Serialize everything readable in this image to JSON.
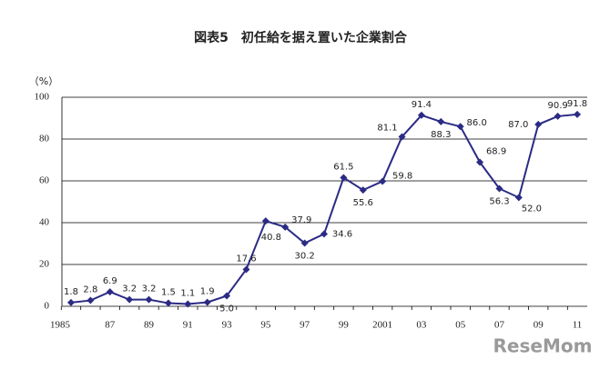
{
  "chart_data": {
    "type": "line",
    "title": "図表5　初任給を据え置いた企業割合",
    "y_label": "（%）",
    "watermark": "ReseMom",
    "categories": [
      "1985",
      null,
      "87",
      null,
      "89",
      null,
      "91",
      null,
      "93",
      null,
      "95",
      null,
      "97",
      null,
      "99",
      null,
      "2001",
      null,
      "03",
      null,
      "05",
      null,
      "07",
      null,
      "09",
      null,
      "11"
    ],
    "series": [
      {
        "color": "#2b2b85",
        "values": [
          1.8,
          2.8,
          6.9,
          3.2,
          3.2,
          1.5,
          1.1,
          1.9,
          5.0,
          17.6,
          40.8,
          37.9,
          30.2,
          34.6,
          61.5,
          55.6,
          59.8,
          81.1,
          91.4,
          88.3,
          86.0,
          68.9,
          56.3,
          52.0,
          87.0,
          90.9,
          91.8
        ],
        "value_labels": [
          "1.8",
          "2.8",
          "6.9",
          "3.2",
          "3.2",
          "1.5",
          "1.1",
          "1.9",
          "5.0",
          "17.6",
          "40.8",
          "37.9",
          "30.2",
          "34.6",
          "61.5",
          "55.6",
          "59.8",
          "81.1",
          "91.4",
          "88.3",
          "86.0",
          "68.9",
          "56.3",
          "52.0",
          "87.0",
          "90.9",
          "91.8"
        ]
      }
    ],
    "ylim": [
      0,
      100
    ],
    "yticks": [
      0,
      20,
      40,
      60,
      80,
      100
    ],
    "grid": true
  }
}
